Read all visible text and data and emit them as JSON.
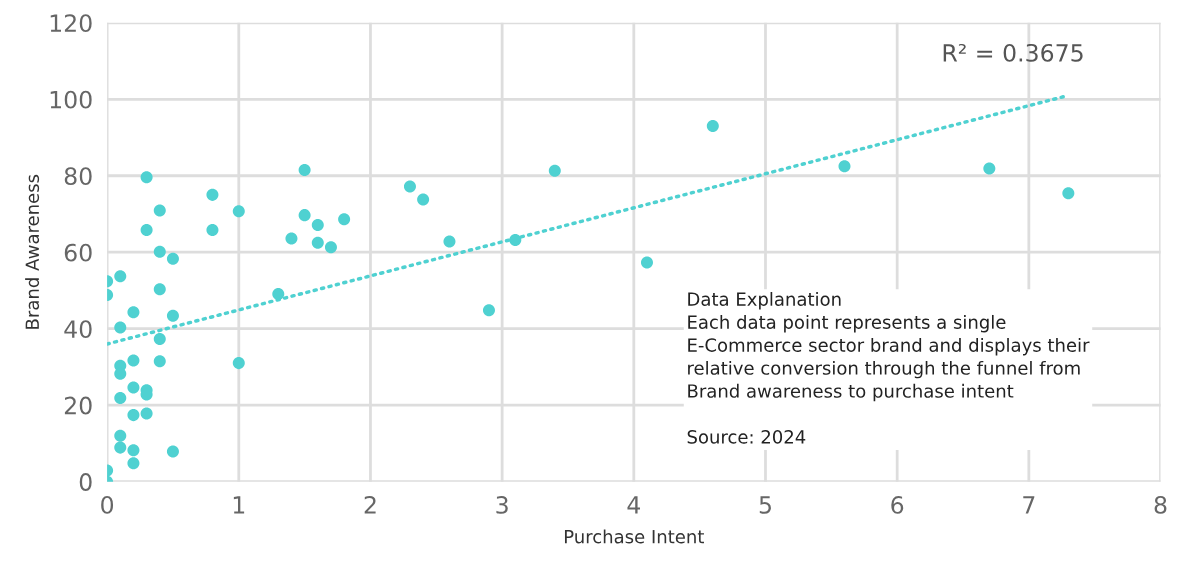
{
  "chart_data": {
    "type": "scatter",
    "xlabel": "Purchase Intent",
    "ylabel": "Brand Awareness",
    "xlim": [
      0,
      8
    ],
    "xticks": [
      0,
      1,
      2,
      3,
      4,
      5,
      6,
      7,
      8
    ],
    "ylim": [
      0,
      120
    ],
    "yticks": [
      0,
      20,
      40,
      60,
      80,
      100,
      120
    ],
    "grid": true,
    "marker": "circle",
    "series": [
      {
        "color": "#4fd1d1",
        "x": [
          0.3,
          0.8,
          0.4,
          1.0,
          0.3,
          0.8,
          0.4,
          0.5,
          0,
          0.1,
          0,
          0.4,
          0.2,
          0.5,
          0.1,
          0.4,
          0.2,
          0.4,
          1.0,
          0.1,
          0.1,
          0.2,
          0.3,
          0.3,
          0.1,
          0.2,
          0.3,
          0.1,
          0.1,
          0.2,
          0.5,
          0.2,
          0,
          0,
          1.5,
          1.5,
          1.6,
          1.8,
          1.4,
          1.6,
          1.7,
          1.3,
          2.3,
          2.4,
          2.6,
          2.9,
          3.1,
          3.4,
          4.1,
          4.6,
          5.6,
          6.7,
          7.3
        ],
        "values": [
          79.6,
          75.0,
          70.9,
          70.7,
          65.8,
          65.8,
          60.1,
          58.3,
          52.4,
          53.7,
          48.8,
          50.3,
          44.3,
          43.4,
          40.3,
          37.3,
          31.7,
          31.5,
          31.0,
          30.3,
          28.2,
          24.6,
          23.9,
          22.8,
          21.9,
          17.4,
          17.8,
          12.0,
          8.9,
          8.2,
          7.9,
          4.8,
          2.9,
          0,
          81.5,
          69.7,
          67.1,
          68.6,
          63.6,
          62.5,
          61.3,
          49.1,
          77.2,
          73.8,
          62.8,
          44.8,
          63.2,
          81.3,
          57.3,
          93.0,
          82.5,
          81.9,
          75.4
        ]
      },
      {
        "type": "line",
        "color": "#4fd1d1",
        "line_style": "dotted",
        "marker": "none",
        "x": [
          0,
          7.3
        ],
        "values": [
          36.0,
          101.0
        ]
      }
    ],
    "annotations": [
      "R² = 0.3675",
      "Data Explanation\nEach data point represents a single\nE-Commerce sector brand and displays their\nrelative conversion through the funnel from\nBrand awareness to purchase intent\n\nSource: 2024"
    ]
  }
}
